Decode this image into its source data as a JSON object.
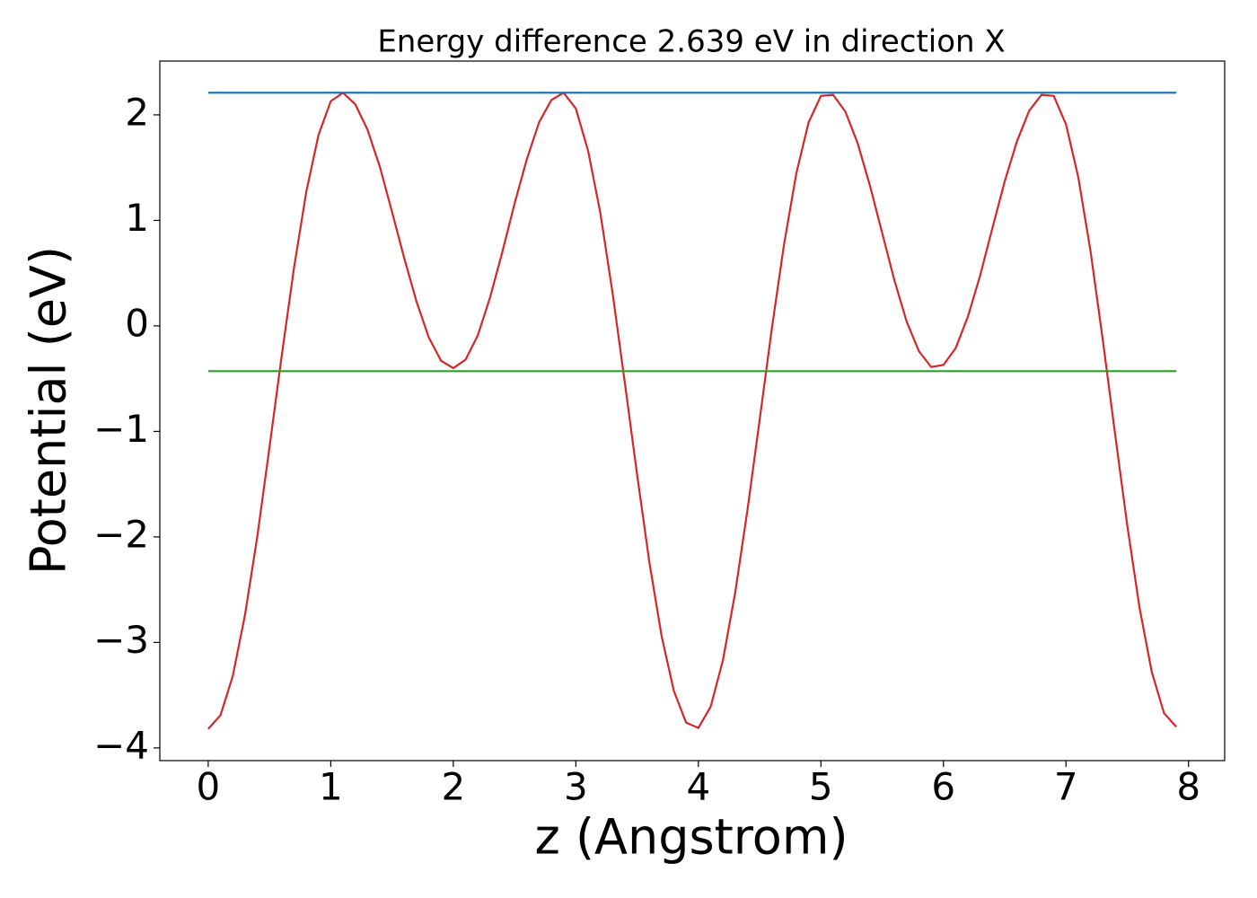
{
  "chart_data": {
    "type": "line",
    "title": "Energy difference 2.639 eV in direction X",
    "xlabel": "z (Angstrom)",
    "ylabel": "Potential (eV)",
    "xlim": [
      -0.395,
      8.295
    ],
    "ylim": [
      -4.12,
      2.51
    ],
    "xticks": [
      0,
      1,
      2,
      3,
      4,
      5,
      6,
      7,
      8
    ],
    "yticks": [
      {
        "value": -4,
        "label": "−4"
      },
      {
        "value": -3,
        "label": "−3"
      },
      {
        "value": -2,
        "label": "−2"
      },
      {
        "value": -1,
        "label": "−1"
      },
      0,
      1,
      2
    ],
    "grid": false,
    "series": [
      {
        "color": "#d62728",
        "x": [
          0,
          0.1,
          0.2,
          0.3,
          0.4,
          0.5,
          0.6,
          0.7,
          0.8,
          0.9,
          1.0,
          1.1,
          1.2,
          1.3,
          1.4,
          1.5,
          1.6,
          1.7,
          1.8,
          1.9,
          2.0,
          2.1,
          2.2,
          2.3,
          2.4,
          2.5,
          2.6,
          2.7,
          2.8,
          2.9,
          3.0,
          3.1,
          3.2,
          3.3,
          3.4,
          3.5,
          3.6,
          3.7,
          3.8,
          3.9,
          4.0,
          4.1,
          4.2,
          4.3,
          4.4,
          4.5,
          4.6,
          4.7,
          4.8,
          4.9,
          5.0,
          5.1,
          5.2,
          5.3,
          5.4,
          5.5,
          5.6,
          5.7,
          5.8,
          5.9,
          6.0,
          6.1,
          6.2,
          6.3,
          6.4,
          6.5,
          6.6,
          6.7,
          6.8,
          6.9,
          7.0,
          7.1,
          7.2,
          7.3,
          7.4,
          7.5,
          7.6,
          7.7,
          7.8,
          7.9
        ],
        "values": [
          -3.82,
          -3.69,
          -3.32,
          -2.74,
          -2.0,
          -1.15,
          -0.28,
          0.55,
          1.27,
          1.81,
          2.13,
          2.21,
          2.1,
          1.86,
          1.51,
          1.08,
          0.64,
          0.23,
          -0.11,
          -0.33,
          -0.4,
          -0.32,
          -0.09,
          0.27,
          0.7,
          1.16,
          1.58,
          1.93,
          2.14,
          2.21,
          2.06,
          1.66,
          1.07,
          0.31,
          -0.54,
          -1.41,
          -2.24,
          -2.94,
          -3.46,
          -3.76,
          -3.81,
          -3.61,
          -3.17,
          -2.53,
          -1.75,
          -0.89,
          -0.02,
          0.78,
          1.45,
          1.93,
          2.18,
          2.19,
          2.03,
          1.73,
          1.33,
          0.88,
          0.43,
          0.04,
          -0.24,
          -0.39,
          -0.37,
          -0.21,
          0.09,
          0.48,
          0.93,
          1.37,
          1.75,
          2.04,
          2.19,
          2.18,
          1.91,
          1.41,
          0.71,
          -0.13,
          -1.02,
          -1.89,
          -2.67,
          -3.28,
          -3.67,
          -3.8
        ]
      },
      {
        "color": "#1f77b4",
        "x": [
          0,
          7.9
        ],
        "values": [
          2.21,
          2.21
        ]
      },
      {
        "color": "#2ca02c",
        "x": [
          0,
          7.9
        ],
        "values": [
          -0.429,
          -0.429
        ]
      }
    ]
  }
}
